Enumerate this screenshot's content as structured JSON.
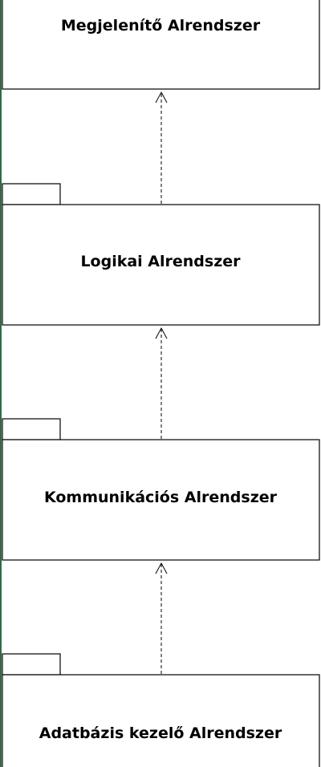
{
  "diagram": {
    "packages": [
      {
        "label": "Megjelenítő Alrendszer"
      },
      {
        "label": "Logikai Alrendszer"
      },
      {
        "label": "Kommunikációs Alrendszer"
      },
      {
        "label": "Adatbázis kezelő Alrendszer"
      }
    ],
    "dependencies": [
      {
        "from": "Logikai Alrendszer",
        "to": "Megjelenítő Alrendszer",
        "style": "dashed-open-arrow"
      },
      {
        "from": "Kommunikációs Alrendszer",
        "to": "Logikai Alrendszer",
        "style": "dashed-open-arrow"
      },
      {
        "from": "Adatbázis kezelő Alrendszer",
        "to": "Kommunikációs Alrendszer",
        "style": "dashed-open-arrow"
      }
    ],
    "colors": {
      "stroke": "#000000",
      "fill": "#ffffff",
      "left_edge": "#2f6a4a"
    }
  }
}
